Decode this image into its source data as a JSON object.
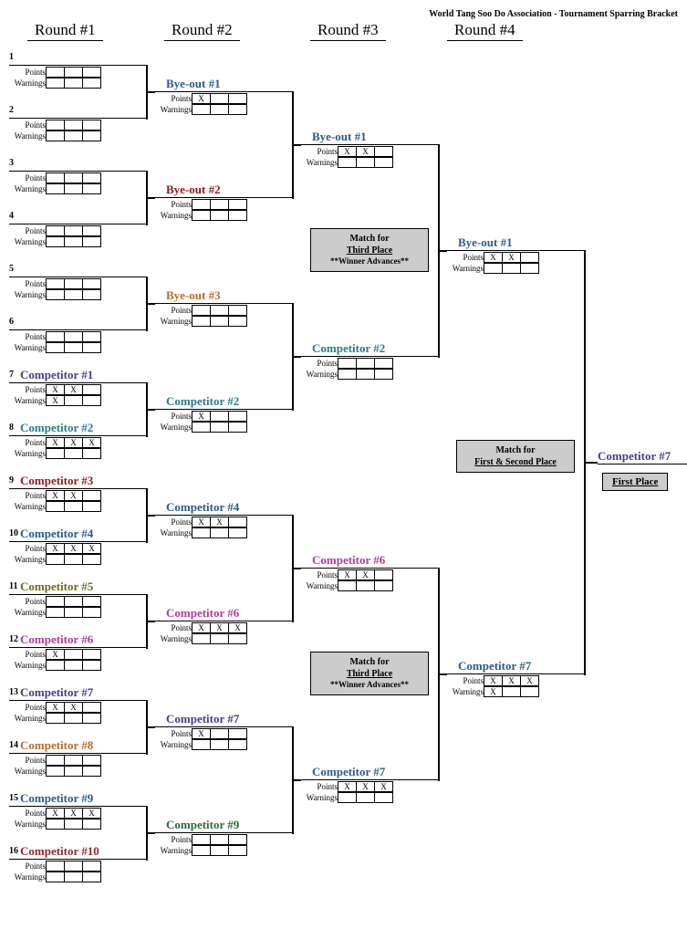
{
  "header": "World Tang Soo Do Association - Tournament Sparring Bracket",
  "rounds": [
    "Round #1",
    "Round #2",
    "Round #3",
    "Round #4"
  ],
  "round_x": [
    20,
    170,
    330,
    480
  ],
  "score_labels": {
    "points": "Points",
    "warnings": "Warnings"
  },
  "colors": {
    "blue": "#2b5a8a",
    "darkred": "#8b1a1a",
    "orange": "#b86b2a",
    "teal": "#2a7a8a",
    "olive": "#6b6b1a",
    "magenta": "#b33a9a",
    "purple": "#4a3a8a",
    "red2": "#8b2a2a",
    "green": "#2a6b3a"
  },
  "r1": [
    {
      "num": "1",
      "name": "",
      "color": "",
      "p": [
        "",
        "",
        ""
      ],
      "w": [
        "",
        "",
        ""
      ]
    },
    {
      "num": "2",
      "name": "",
      "color": "",
      "p": [
        "",
        "",
        ""
      ],
      "w": [
        "",
        "",
        ""
      ]
    },
    {
      "num": "3",
      "name": "",
      "color": "",
      "p": [
        "",
        "",
        ""
      ],
      "w": [
        "",
        "",
        ""
      ]
    },
    {
      "num": "4",
      "name": "",
      "color": "",
      "p": [
        "",
        "",
        ""
      ],
      "w": [
        "",
        "",
        ""
      ]
    },
    {
      "num": "5",
      "name": "",
      "color": "",
      "p": [
        "",
        "",
        ""
      ],
      "w": [
        "",
        "",
        ""
      ]
    },
    {
      "num": "6",
      "name": "",
      "color": "",
      "p": [
        "",
        "",
        ""
      ],
      "w": [
        "",
        "",
        ""
      ]
    },
    {
      "num": "7",
      "name": "Competitor #1",
      "color": "purple",
      "p": [
        "X",
        "X",
        ""
      ],
      "w": [
        "X",
        "",
        ""
      ]
    },
    {
      "num": "8",
      "name": "Competitor #2",
      "color": "teal",
      "p": [
        "X",
        "X",
        "X"
      ],
      "w": [
        "",
        "",
        ""
      ]
    },
    {
      "num": "9",
      "name": "Competitor #3",
      "color": "darkred",
      "p": [
        "X",
        "X",
        ""
      ],
      "w": [
        "",
        "",
        ""
      ]
    },
    {
      "num": "10",
      "name": "Competitor #4",
      "color": "blue",
      "p": [
        "X",
        "X",
        "X"
      ],
      "w": [
        "",
        "",
        ""
      ]
    },
    {
      "num": "11",
      "name": "Competitor #5",
      "color": "olive",
      "p": [
        "",
        "",
        ""
      ],
      "w": [
        "",
        "",
        ""
      ]
    },
    {
      "num": "12",
      "name": "Competitor #6",
      "color": "magenta",
      "p": [
        "X",
        "",
        ""
      ],
      "w": [
        "",
        "",
        ""
      ]
    },
    {
      "num": "13",
      "name": "Competitor #7",
      "color": "purple",
      "p": [
        "X",
        "X",
        ""
      ],
      "w": [
        "",
        "",
        ""
      ]
    },
    {
      "num": "14",
      "name": "Competitor #8",
      "color": "orange",
      "p": [
        "",
        "",
        ""
      ],
      "w": [
        "",
        "",
        ""
      ]
    },
    {
      "num": "15",
      "name": "Competitor #9",
      "color": "blue",
      "p": [
        "X",
        "X",
        "X"
      ],
      "w": [
        "",
        "",
        ""
      ]
    },
    {
      "num": "16",
      "name": "Competitor #10",
      "color": "red2",
      "p": [
        "",
        "",
        ""
      ],
      "w": [
        "",
        "",
        ""
      ]
    }
  ],
  "r2": [
    {
      "name": "Bye-out #1",
      "color": "blue",
      "p": [
        "X",
        "",
        ""
      ],
      "w": [
        "",
        "",
        ""
      ]
    },
    {
      "name": "Bye-out #2",
      "color": "darkred",
      "p": [
        "",
        "",
        ""
      ],
      "w": [
        "",
        "",
        ""
      ]
    },
    {
      "name": "Bye-out #3",
      "color": "orange",
      "p": [
        "",
        "",
        ""
      ],
      "w": [
        "",
        "",
        ""
      ]
    },
    {
      "name": "Competitor #2",
      "color": "teal",
      "p": [
        "X",
        "",
        ""
      ],
      "w": [
        "",
        "",
        ""
      ]
    },
    {
      "name": "Competitor #4",
      "color": "blue",
      "p": [
        "X",
        "X",
        ""
      ],
      "w": [
        "",
        "",
        ""
      ]
    },
    {
      "name": "Competitor #6",
      "color": "magenta",
      "p": [
        "X",
        "X",
        "X"
      ],
      "w": [
        "",
        "",
        ""
      ]
    },
    {
      "name": "Competitor #7",
      "color": "purple",
      "p": [
        "X",
        "",
        ""
      ],
      "w": [
        "",
        "",
        ""
      ]
    },
    {
      "name": "Competitor #9",
      "color": "green",
      "p": [
        "",
        "",
        ""
      ],
      "w": [
        "",
        "",
        ""
      ]
    }
  ],
  "r3": [
    {
      "name": "Bye-out #1",
      "color": "blue",
      "p": [
        "X",
        "X",
        ""
      ],
      "w": [
        "",
        "",
        ""
      ]
    },
    {
      "name": "Competitor #2",
      "color": "teal",
      "p": [
        "",
        "",
        ""
      ],
      "w": [
        "",
        "",
        ""
      ]
    },
    {
      "name": "Competitor #6",
      "color": "magenta",
      "p": [
        "X",
        "X",
        ""
      ],
      "w": [
        "",
        "",
        ""
      ]
    },
    {
      "name": "Competitor #7",
      "color": "blue",
      "p": [
        "X",
        "X",
        "X"
      ],
      "w": [
        "",
        "",
        ""
      ]
    }
  ],
  "r4": [
    {
      "name": "Bye-out #1",
      "color": "blue",
      "p": [
        "X",
        "X",
        ""
      ],
      "w": [
        "",
        "",
        ""
      ]
    },
    {
      "name": "Competitor #7",
      "color": "blue",
      "p": [
        "X",
        "X",
        "X"
      ],
      "w": [
        "X",
        "",
        ""
      ]
    }
  ],
  "winner": {
    "name": "Competitor #7",
    "color": "purple"
  },
  "third_place_box": {
    "t1": "Match for",
    "t2": "Third Place",
    "t3": "**Winner Advances**"
  },
  "final_box": {
    "t1": "Match for",
    "t2": "First & Second Place"
  },
  "first_place_label": "First Place"
}
